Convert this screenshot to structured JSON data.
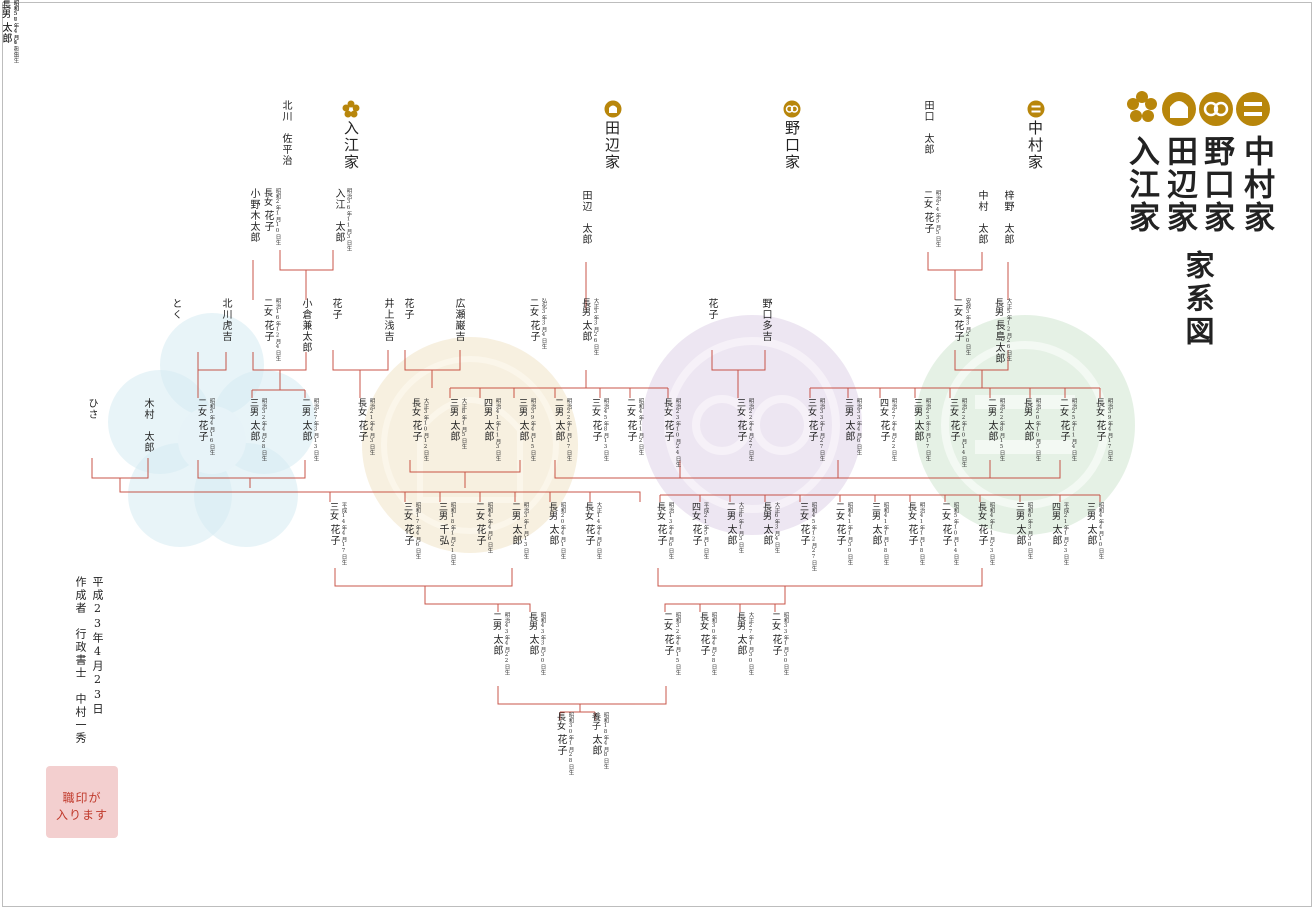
{
  "title": {
    "families": [
      "中村家",
      "野口家",
      "田辺家",
      "入江家"
    ],
    "suffix": "家系図"
  },
  "families": {
    "irie": "入江家",
    "tanabe": "田辺家",
    "noguchi": "野口家",
    "nakamura": "中村家"
  },
  "meta": {
    "date": "平成23年4月23日",
    "author": "作成者　行政書士　中村一秀"
  },
  "stamp": {
    "line1": "職印が",
    "line2": "入ります"
  },
  "colors": {
    "line": "#c0392b",
    "gold": "#b8860b",
    "wm_blue": "#d6ebf3",
    "wm_gold": "#f3ead3",
    "wm_purple": "#e6dcec",
    "wm_green": "#dcecdc",
    "stamp_bg": "#f3cfcf",
    "stamp_text": "#c0392b"
  },
  "icons": [
    "crest-plum-icon",
    "crest-tanabe-icon",
    "crest-noguchi-icon",
    "crest-nakamura-icon"
  ],
  "people": [
    {
      "name": "北川　佐平治"
    },
    {
      "name": "入江　太郎",
      "date": "明治36年11月3日生"
    },
    {
      "rel": "長女",
      "name": "花子",
      "date": "昭和2年1月10日生"
    },
    {
      "name": "小野木太郎"
    },
    {
      "rel": "二女",
      "name": "花子",
      "date": "明治16年12月4日生"
    },
    {
      "name": "北川虎吉"
    },
    {
      "name": "とく"
    },
    {
      "name": "小倉兼太郎"
    },
    {
      "name": "花子"
    },
    {
      "name": "井上浅吉"
    },
    {
      "name": "花子"
    },
    {
      "name": "広瀬巌吉"
    },
    {
      "name": "田辺　太郎"
    },
    {
      "rel": "長男",
      "name": "太郎",
      "date": "大正3年3月26日生"
    },
    {
      "rel": "二女",
      "name": "花子",
      "date": "弘化3年3月4日生"
    },
    {
      "name": "花子"
    },
    {
      "name": "野口多吉"
    },
    {
      "name": "田口　太郎"
    },
    {
      "name": "中村　太郎"
    },
    {
      "name": "梓野　太郎"
    },
    {
      "rel": "二女",
      "name": "花子",
      "date": "明治24年5月5日生"
    },
    {
      "rel": "長男",
      "name": "長島太郎",
      "date": "大正5年12月26日生"
    },
    {
      "rel": "二女",
      "name": "花子",
      "date": "安政3年3月20日生"
    },
    {
      "name": "ひさ"
    },
    {
      "name": "木村　太郎"
    },
    {
      "rel": "三男",
      "name": "太郎",
      "date": "明治32年4月28日生"
    },
    {
      "rel": "二男",
      "name": "太郎",
      "date": "明治27年3月13日生"
    },
    {
      "rel": "二女",
      "name": "花子",
      "date": "昭和5年4月16日生"
    },
    {
      "rel": "長女",
      "name": "花子",
      "date": "明治21年4月3日生"
    },
    {
      "rel": "長女",
      "name": "花子",
      "date": "大正3年10月12日生"
    },
    {
      "rel": "三男",
      "name": "太郎",
      "date": "大正8年1月5日生"
    },
    {
      "rel": "四男",
      "name": "太郎",
      "date": "明治41年11月3日生"
    },
    {
      "rel": "三男",
      "name": "太郎",
      "date": "明治39年4月15日生"
    },
    {
      "rel": "二男",
      "name": "太郎",
      "date": "明治22年1月17日生"
    },
    {
      "rel": "三女",
      "name": "花子",
      "date": "明治45年8月13日生"
    },
    {
      "rel": "二女",
      "name": "花子",
      "date": "昭和4年11月2日生"
    },
    {
      "rel": "長女",
      "name": "花子",
      "date": "明治23年10月24日生"
    },
    {
      "rel": "三女",
      "name": "花子",
      "date": "明治22年4月27日生"
    },
    {
      "rel": "三女",
      "name": "花子",
      "date": "明治33年1月27日生"
    },
    {
      "rel": "三男",
      "name": "太郎",
      "date": "明治33年4月6日生"
    },
    {
      "rel": "四女",
      "name": "花子",
      "date": "明治27年4月22日生"
    },
    {
      "rel": "三男",
      "name": "太郎",
      "date": "明治23年3月17日生"
    },
    {
      "rel": "三女",
      "name": "花子",
      "date": "明治22年10月14日生"
    },
    {
      "rel": "二男",
      "name": "太郎",
      "date": "明治22年8月15日生"
    },
    {
      "rel": "長男",
      "name": "太郎",
      "date": "明治20年10月3日生"
    },
    {
      "rel": "二女",
      "name": "花子",
      "date": "明治25年11月4日生"
    },
    {
      "rel": "長女",
      "name": "花子",
      "date": "明治39年4月17日生"
    },
    {
      "rel": "三女",
      "name": "花子",
      "date": "平成14年4月17日生"
    },
    {
      "rel": "三女",
      "name": "花子",
      "date": "昭和17年4月6日生"
    },
    {
      "rel": "三男",
      "name": "千弘",
      "date": "昭和18年1月21日生"
    },
    {
      "rel": "二女",
      "name": "花子",
      "date": "昭和4年4月6日生"
    },
    {
      "rel": "二男",
      "name": "太郎",
      "date": "明治3年1月13日生"
    },
    {
      "rel": "長男",
      "name": "太郎",
      "date": "昭和20年4月1日生"
    },
    {
      "rel": "長女",
      "name": "花子",
      "date": "大正14年4月8日生"
    },
    {
      "rel": "長女",
      "name": "花子",
      "date": "明治13年4月6日生"
    },
    {
      "rel": "四女",
      "name": "花子",
      "date": "平成21年5月1日生"
    },
    {
      "rel": "二男",
      "name": "太郎",
      "date": "大正6年1月3日生"
    },
    {
      "rel": "長男",
      "name": "太郎",
      "date": "大正6年3月4日生"
    },
    {
      "rel": "三女",
      "name": "花子",
      "date": "昭和45年12月27日生"
    },
    {
      "rel": "二女",
      "name": "花子",
      "date": "昭和41年1月30日生"
    },
    {
      "rel": "三男",
      "name": "太郎",
      "date": "昭和41年1月18日生"
    },
    {
      "rel": "長女",
      "name": "花子",
      "date": "明治41年1月18日生"
    },
    {
      "rel": "二女",
      "name": "花子",
      "date": "昭和5年10月14日生"
    },
    {
      "rel": "長女",
      "name": "花子",
      "date": "昭和4年11月23日生"
    },
    {
      "rel": "三男",
      "name": "太郎",
      "date": "昭和6年3月30日生"
    },
    {
      "rel": "四男",
      "name": "太郎",
      "date": "平成21年1月23日生"
    },
    {
      "rel": "三男",
      "name": "太郎",
      "date": "昭和4年4月10日生"
    },
    {
      "rel": "二男",
      "name": "太郎",
      "date": "明治43年4月22日生"
    },
    {
      "rel": "長男",
      "name": "太郎",
      "date": "昭和43年3月30日生"
    },
    {
      "rel": "二女",
      "name": "花子",
      "date": "昭和32年4月15日生"
    },
    {
      "rel": "長女",
      "name": "花子",
      "date": "昭和30年4月28日生"
    },
    {
      "rel": "長男",
      "name": "太郎",
      "date": "大正27年1月30日生"
    },
    {
      "rel": "二女",
      "name": "花子",
      "date": "昭和33年1月30日生"
    },
    {
      "rel": "長女",
      "name": "花子",
      "date": "昭和30年1月28日生"
    },
    {
      "rel": "養子",
      "name": "太郎",
      "date": "昭和18年4月8日生"
    },
    {
      "rel": "二男",
      "name": "太郎",
      "date": "昭和57年4月6日生"
    },
    {
      "rel": "長男",
      "name": "太郎",
      "date": "昭和56年4月13日生"
    }
  ]
}
